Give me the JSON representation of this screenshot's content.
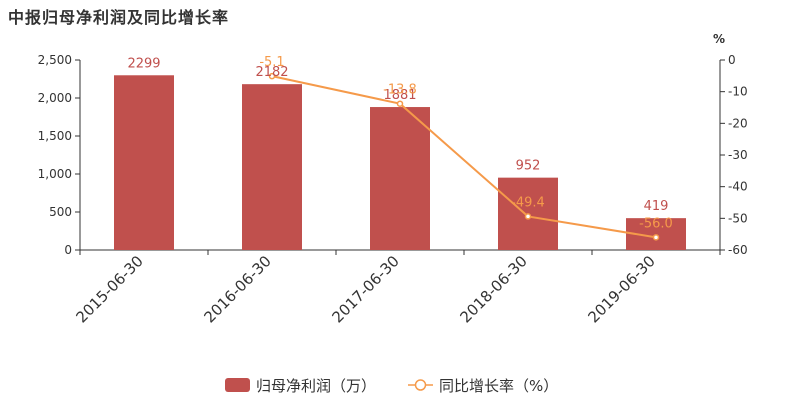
{
  "chart_data": {
    "type": "bar+line",
    "title": "中报归母净利润及同比增长率",
    "categories": [
      "2015-06-30",
      "2016-06-30",
      "2017-06-30",
      "2018-06-30",
      "2019-06-30"
    ],
    "series": [
      {
        "name": "归母净利润（万）",
        "type": "bar",
        "axis": "left",
        "color": "#c0504d",
        "values": [
          2299,
          2182,
          1881,
          952,
          419
        ],
        "labels": [
          "2299",
          "2182",
          "1881",
          "952",
          "419"
        ]
      },
      {
        "name": "同比增长率（%）",
        "type": "line",
        "axis": "right",
        "color": "#f59a4a",
        "values": [
          null,
          -5.1,
          -13.8,
          -49.4,
          -56.0
        ],
        "labels": [
          "",
          "-5.1",
          "-13.8",
          "-49.4",
          "-56.0"
        ]
      }
    ],
    "y_left": {
      "min": 0,
      "max": 2500,
      "ticks": [
        0,
        500,
        1000,
        1500,
        2000,
        2500
      ],
      "tick_labels": [
        "0",
        "500",
        "1,000",
        "1,500",
        "2,000",
        "2,500"
      ]
    },
    "y_right": {
      "min": -60,
      "max": 0,
      "unit": "%",
      "ticks": [
        0,
        -10,
        -20,
        -30,
        -40,
        -50,
        -60
      ],
      "tick_labels": [
        "0",
        "-10",
        "-20",
        "-30",
        "-40",
        "-50",
        "-60"
      ]
    },
    "legend_position": "bottom-center",
    "grid": false
  }
}
